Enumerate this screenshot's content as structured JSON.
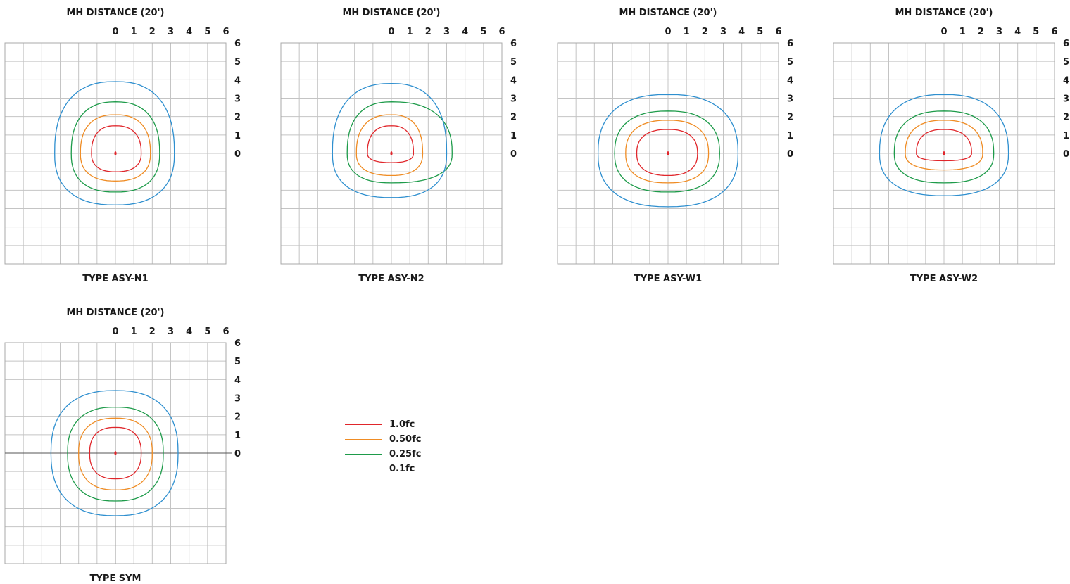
{
  "colors": {
    "1.0fc": "#e0262b",
    "0.50fc": "#ef8c24",
    "0.25fc": "#1e9b4a",
    "0.1fc": "#2e8fcf",
    "axis": "#555555"
  },
  "legend": [
    {
      "key": "1.0fc",
      "label": "1.0fc"
    },
    {
      "key": "0.50fc",
      "label": "0.50fc"
    },
    {
      "key": "0.25fc",
      "label": "0.25fc"
    },
    {
      "key": "0.1fc",
      "label": "0.1fc"
    }
  ],
  "chart_data": [
    {
      "type": "isofootcandle",
      "title": "MH DISTANCE (20')",
      "label": "TYPE ASY-N1",
      "x_ticks": [
        "0",
        "1",
        "2",
        "3",
        "4",
        "5",
        "6"
      ],
      "y_ticks": [
        "6",
        "5",
        "4",
        "3",
        "2",
        "1",
        "0"
      ],
      "xlim": [
        -6,
        6
      ],
      "ylim": [
        -6,
        6
      ],
      "grid": true,
      "series": [
        {
          "name": "1.0fc",
          "extent": {
            "left": 1.3,
            "right": 1.4,
            "top": 1.5,
            "bottom": 1.0
          }
        },
        {
          "name": "0.50fc",
          "extent": {
            "left": 1.9,
            "right": 1.9,
            "top": 2.1,
            "bottom": 1.5
          }
        },
        {
          "name": "0.25fc",
          "extent": {
            "left": 2.4,
            "right": 2.4,
            "top": 2.8,
            "bottom": 2.1
          }
        },
        {
          "name": "0.1fc",
          "extent": {
            "left": 3.3,
            "right": 3.2,
            "top": 3.9,
            "bottom": 2.8
          }
        }
      ]
    },
    {
      "type": "isofootcandle",
      "title": "MH DISTANCE (20')",
      "label": "TYPE ASY-N2",
      "x_ticks": [
        "0",
        "1",
        "2",
        "3",
        "4",
        "5",
        "6"
      ],
      "y_ticks": [
        "6",
        "5",
        "4",
        "3",
        "2",
        "1",
        "0"
      ],
      "xlim": [
        -6,
        6
      ],
      "ylim": [
        -6,
        6
      ],
      "grid": true,
      "series": [
        {
          "name": "1.0fc",
          "extent": {
            "left": 1.3,
            "right": 1.2,
            "top": 1.5,
            "bottom": 0.5
          }
        },
        {
          "name": "0.50fc",
          "extent": {
            "left": 1.9,
            "right": 1.7,
            "top": 2.1,
            "bottom": 1.2
          }
        },
        {
          "name": "0.25fc",
          "extent": {
            "left": 2.4,
            "right": 3.3,
            "top": 2.8,
            "bottom": 1.6
          }
        },
        {
          "name": "0.1fc",
          "extent": {
            "left": 3.2,
            "right": 3.0,
            "top": 3.8,
            "bottom": 2.4
          }
        }
      ]
    },
    {
      "type": "isofootcandle",
      "title": "MH DISTANCE (20')",
      "label": "TYPE ASY-W1",
      "x_ticks": [
        "0",
        "1",
        "2",
        "3",
        "4",
        "5",
        "6"
      ],
      "y_ticks": [
        "6",
        "5",
        "4",
        "3",
        "2",
        "1",
        "0"
      ],
      "xlim": [
        -6,
        6
      ],
      "ylim": [
        -6,
        6
      ],
      "grid": true,
      "series": [
        {
          "name": "1.0fc",
          "extent": {
            "left": 1.7,
            "right": 1.6,
            "top": 1.3,
            "bottom": 1.2
          }
        },
        {
          "name": "0.50fc",
          "extent": {
            "left": 2.3,
            "right": 2.2,
            "top": 1.8,
            "bottom": 1.6
          }
        },
        {
          "name": "0.25fc",
          "extent": {
            "left": 2.9,
            "right": 2.8,
            "top": 2.3,
            "bottom": 2.1
          }
        },
        {
          "name": "0.1fc",
          "extent": {
            "left": 3.8,
            "right": 3.8,
            "top": 3.2,
            "bottom": 2.9
          }
        }
      ]
    },
    {
      "type": "isofootcandle",
      "title": "MH DISTANCE (20')",
      "label": "TYPE ASY-W2",
      "x_ticks": [
        "0",
        "1",
        "2",
        "3",
        "4",
        "5",
        "6"
      ],
      "y_ticks": [
        "6",
        "5",
        "4",
        "3",
        "2",
        "1",
        "0"
      ],
      "xlim": [
        -6,
        6
      ],
      "ylim": [
        -6,
        6
      ],
      "grid": true,
      "series": [
        {
          "name": "1.0fc",
          "extent": {
            "left": 1.5,
            "right": 1.5,
            "top": 1.3,
            "bottom": 0.4
          }
        },
        {
          "name": "0.50fc",
          "extent": {
            "left": 2.1,
            "right": 2.1,
            "top": 1.8,
            "bottom": 0.9
          }
        },
        {
          "name": "0.25fc",
          "extent": {
            "left": 2.7,
            "right": 2.7,
            "top": 2.3,
            "bottom": 1.6
          }
        },
        {
          "name": "0.1fc",
          "extent": {
            "left": 3.5,
            "right": 3.5,
            "top": 3.2,
            "bottom": 2.3
          }
        }
      ]
    },
    {
      "type": "isofootcandle",
      "title": "MH DISTANCE (20')",
      "label": "TYPE SYM",
      "x_ticks": [
        "0",
        "1",
        "2",
        "3",
        "4",
        "5",
        "6"
      ],
      "y_ticks": [
        "6",
        "5",
        "4",
        "3",
        "2",
        "1",
        "0"
      ],
      "xlim": [
        -6,
        6
      ],
      "ylim": [
        -6,
        6
      ],
      "grid": true,
      "center_axis": true,
      "series": [
        {
          "name": "1.0fc",
          "extent": {
            "left": 1.4,
            "right": 1.4,
            "top": 1.4,
            "bottom": 1.4
          }
        },
        {
          "name": "0.50fc",
          "extent": {
            "left": 2.0,
            "right": 2.0,
            "top": 1.9,
            "bottom": 2.0
          }
        },
        {
          "name": "0.25fc",
          "extent": {
            "left": 2.6,
            "right": 2.6,
            "top": 2.5,
            "bottom": 2.6
          }
        },
        {
          "name": "0.1fc",
          "extent": {
            "left": 3.5,
            "right": 3.4,
            "top": 3.4,
            "bottom": 3.4
          }
        }
      ]
    }
  ]
}
